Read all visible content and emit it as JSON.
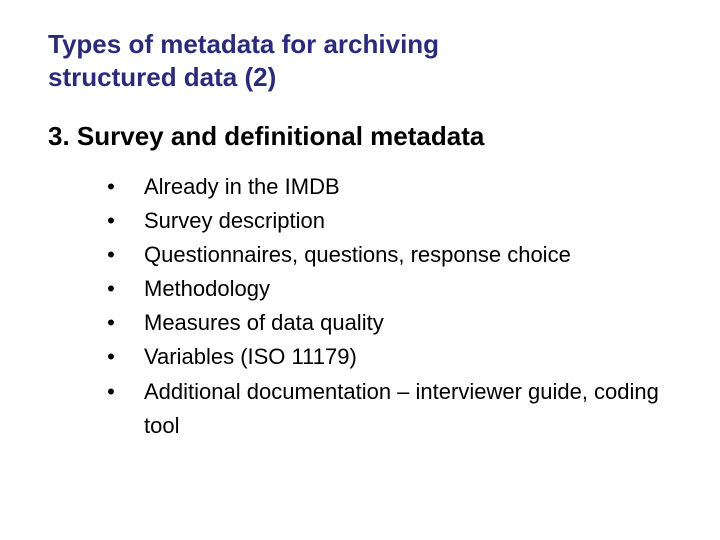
{
  "title_line1": "Types of metadata for archiving",
  "title_line2": "structured data (2)",
  "section_heading": "3. Survey and definitional metadata",
  "bullets": {
    "b0": "Already in the IMDB",
    "b1": "Survey description",
    "b2": "Questionnaires, questions, response choice",
    "b3": "Methodology",
    "b4": "Measures of data quality",
    "b5": "Variables (ISO 11179)",
    "b6": "Additional documentation – interviewer guide, coding tool"
  },
  "colors": {
    "title": "#2b2b7a",
    "body": "#000000",
    "background": "#ffffff"
  },
  "fonts": {
    "title_size_pt": 26,
    "heading_size_pt": 26,
    "body_size_pt": 22,
    "family": "Arial"
  },
  "bullet_glyph": "•"
}
